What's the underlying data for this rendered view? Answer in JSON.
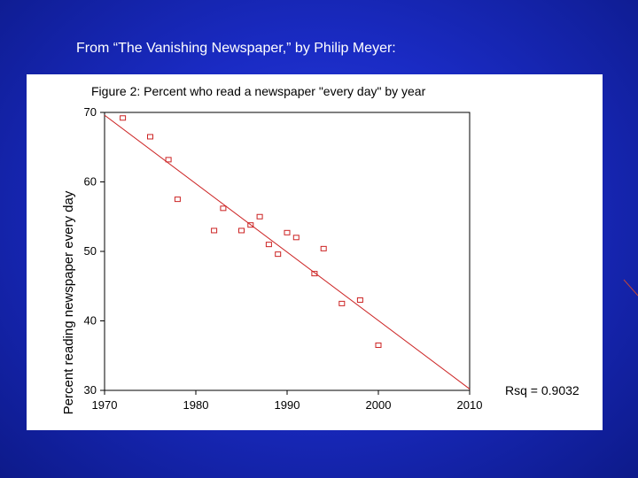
{
  "slide": {
    "title": "From “The Vanishing Newspaper,” by Philip Meyer:"
  },
  "colors": {
    "background": "#1a2bc4",
    "panel": "#ffffff",
    "series": "#cc2222",
    "text": "#000000"
  },
  "chart_data": {
    "type": "scatter",
    "title": "Figure 2: Percent who read a newspaper \"every day\" by year",
    "xlabel": "",
    "ylabel": "Percent reading newspaper every day",
    "xlim": [
      1970,
      2010
    ],
    "ylim": [
      30,
      70
    ],
    "xticks": [
      1970,
      1980,
      1990,
      2000,
      2010
    ],
    "yticks": [
      30,
      40,
      50,
      60,
      70
    ],
    "grid": false,
    "series": [
      {
        "points": [
          [
            1972,
            69.2
          ],
          [
            1975,
            66.5
          ],
          [
            1977,
            63.2
          ],
          [
            1978,
            57.5
          ],
          [
            1982,
            53.0
          ],
          [
            1983,
            56.2
          ],
          [
            1985,
            53.0
          ],
          [
            1986,
            53.8
          ],
          [
            1987,
            55.0
          ],
          [
            1988,
            51.0
          ],
          [
            1989,
            49.6
          ],
          [
            1990,
            52.7
          ],
          [
            1991,
            52.0
          ],
          [
            1993,
            46.8
          ],
          [
            1994,
            50.4
          ],
          [
            1996,
            42.5
          ],
          [
            1998,
            43.0
          ],
          [
            2000,
            36.5
          ]
        ]
      }
    ],
    "fit_line": {
      "x": [
        1970,
        2010
      ],
      "y": [
        69.6,
        30.2
      ]
    },
    "annotation": "Rsq = 0.9032"
  }
}
